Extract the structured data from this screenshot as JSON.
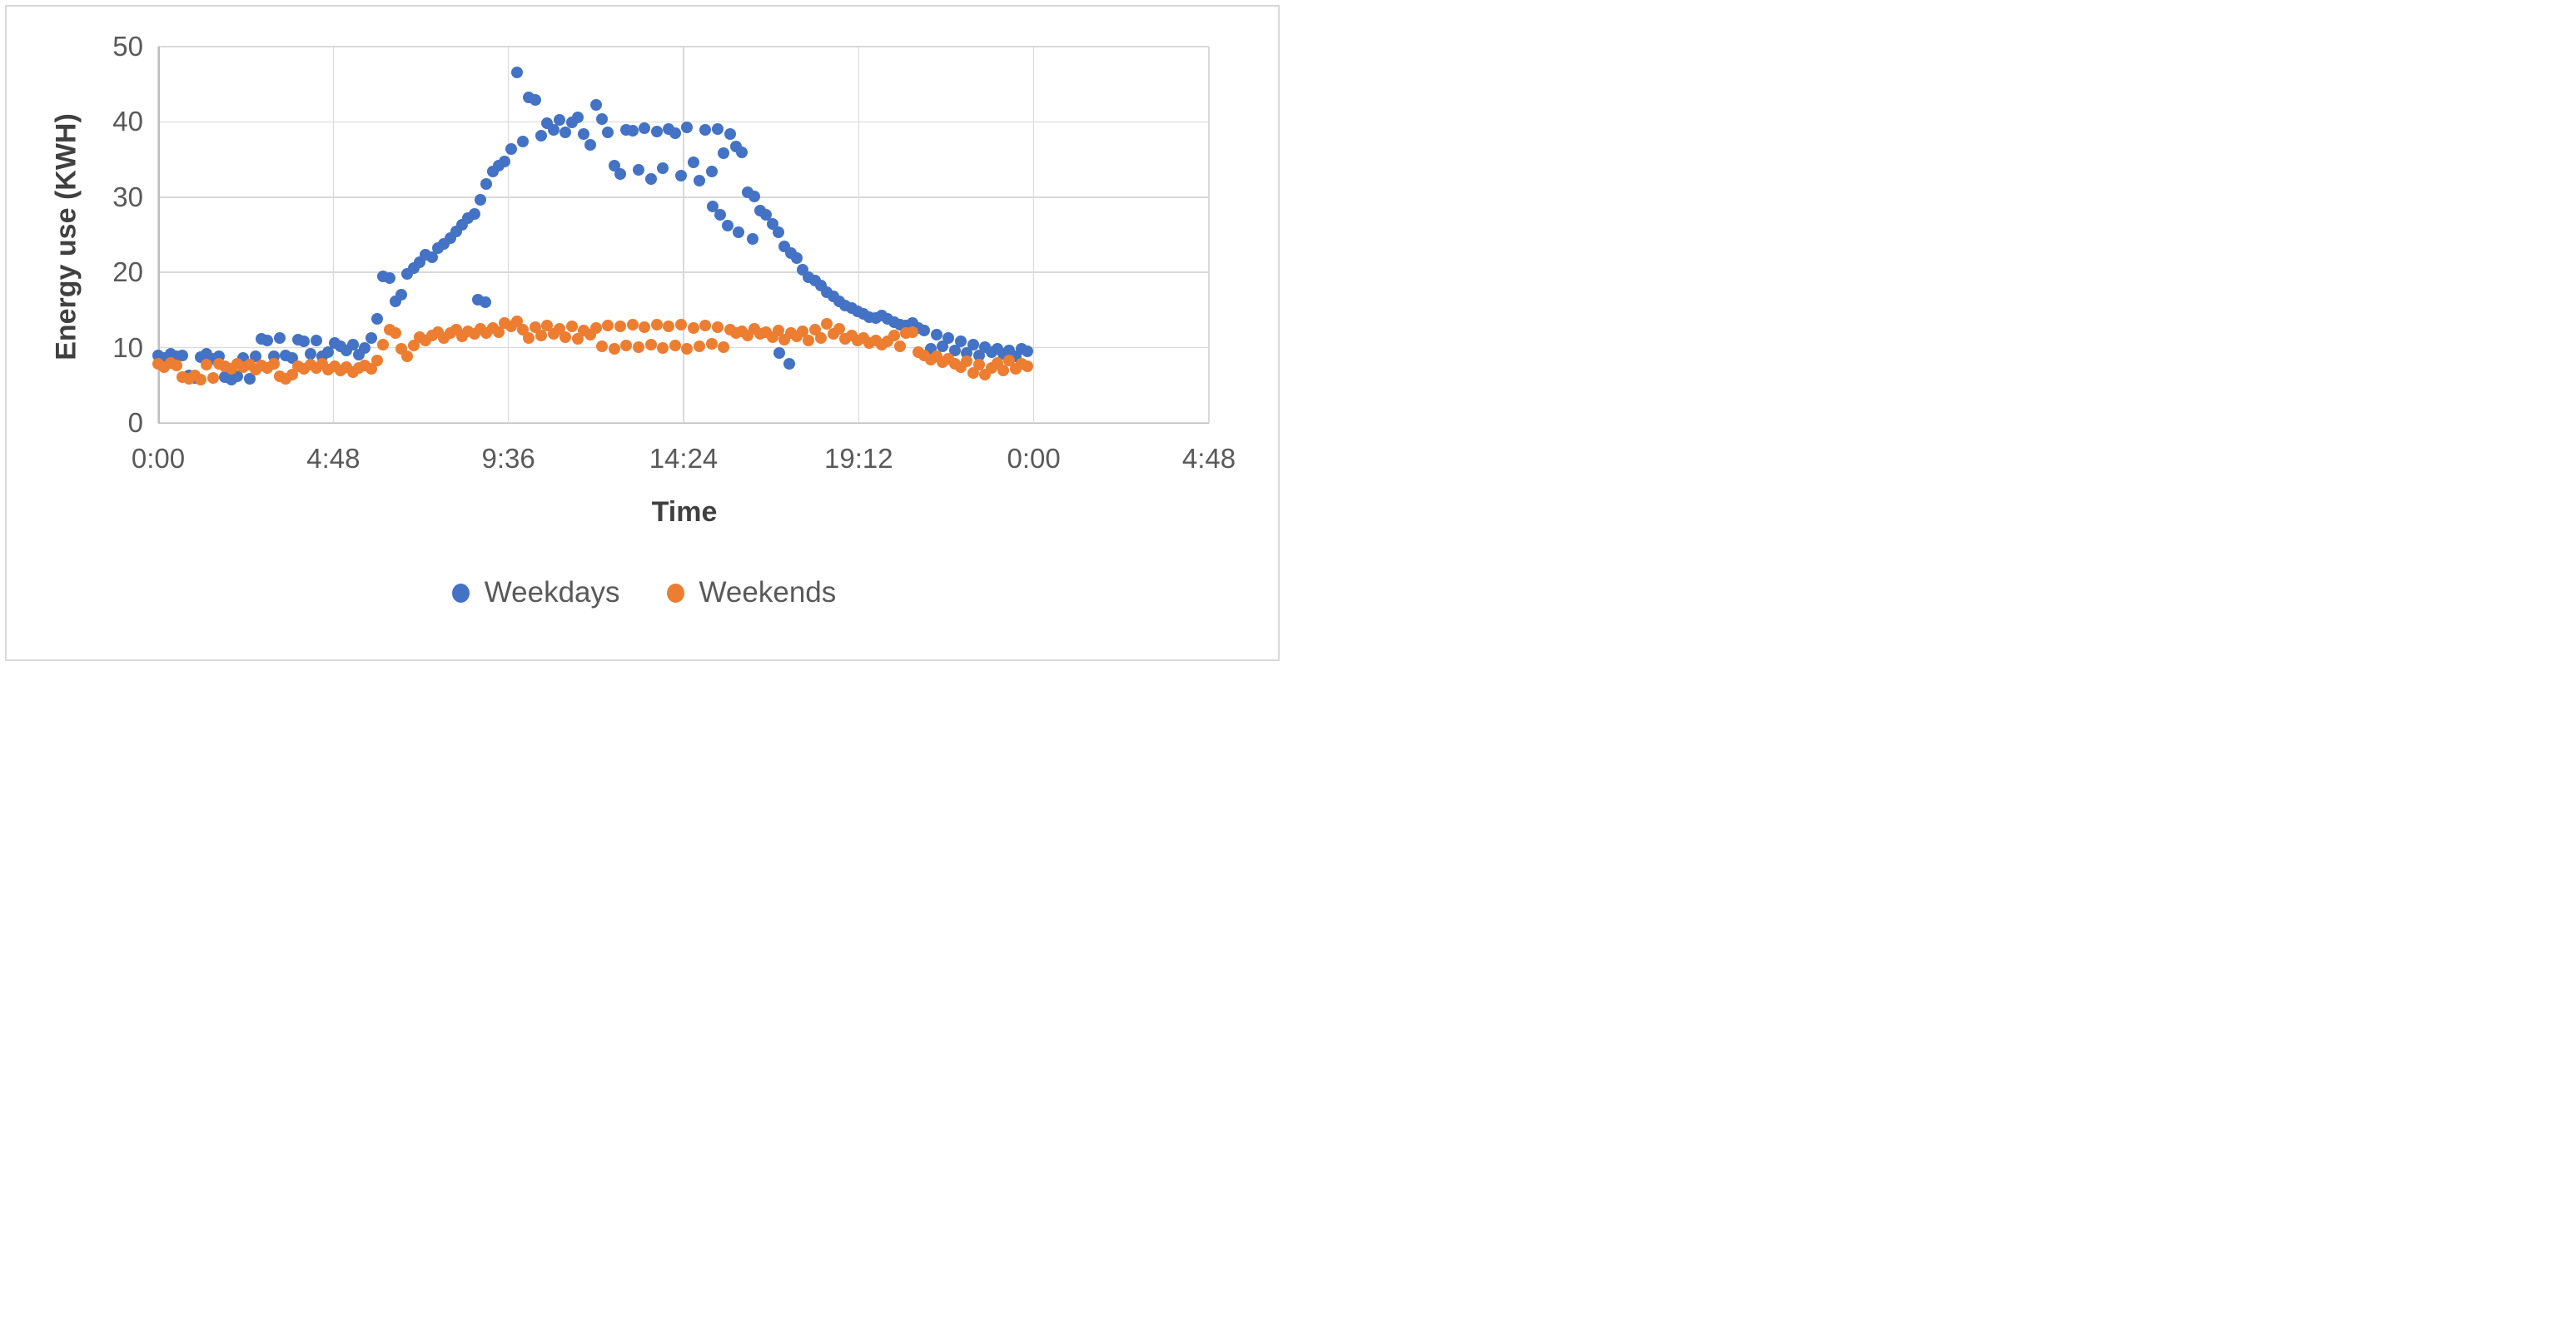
{
  "chart_data": {
    "type": "scatter",
    "title": "",
    "xlabel": "Time",
    "ylabel": "Energy use (KWH)",
    "grid": true,
    "legend_position": "bottom",
    "x_axis": {
      "tick_labels": [
        "0:00",
        "4:48",
        "9:36",
        "14:24",
        "19:12",
        "0:00",
        "4:48"
      ],
      "tick_hours": [
        0,
        4.8,
        9.6,
        14.4,
        19.2,
        24,
        28.8
      ],
      "range_hours": [
        0,
        28.8
      ]
    },
    "y_axis": {
      "tick_labels": [
        "0",
        "10",
        "20",
        "30",
        "40",
        "50"
      ],
      "ticks": [
        0,
        10,
        20,
        30,
        40,
        50
      ],
      "range": [
        0,
        50
      ]
    },
    "series": [
      {
        "name": "Weekdays",
        "color": "#4472C4",
        "start_min": 0,
        "interval_min": 10,
        "values": [
          9.0,
          8.6,
          9.2,
          8.8,
          9.0,
          6.3,
          6.0,
          8.7,
          9.2,
          8.5,
          8.9,
          6.1,
          5.8,
          6.2,
          8.6,
          5.9,
          8.8,
          11.2,
          11.0,
          8.9,
          11.3,
          9.0,
          8.6,
          11.1,
          10.8,
          9.2,
          10.9,
          8.8,
          9.4,
          10.6,
          10.2,
          9.6,
          10.4,
          9.1,
          10.0,
          11.3,
          13.8,
          19.5,
          19.2,
          16.2,
          17.0,
          19.8,
          20.6,
          21.4,
          22.3,
          22.0,
          23.2,
          23.8,
          24.6,
          25.4,
          26.3,
          27.2,
          27.8,
          29.6,
          31.8,
          33.4,
          34.2,
          34.7,
          36.4,
          46.6,
          37.4,
          43.3,
          42.9,
          38.2,
          39.8,
          38.9,
          40.3,
          38.6,
          39.9,
          40.6,
          38.4,
          36.9,
          42.3,
          40.4,
          38.6,
          34.2,
          33.1,
          38.9,
          38.8,
          33.6,
          39.2,
          32.4,
          38.7,
          33.9,
          39.0,
          38.5,
          32.8,
          39.3,
          34.6,
          32.2,
          38.9,
          33.4,
          39.1,
          35.8,
          38.4,
          36.7,
          35.9,
          30.6,
          30.1,
          28.2,
          27.6,
          26.4,
          25.3,
          23.4,
          22.6,
          21.9,
          20.3,
          19.4,
          18.9,
          18.2,
          17.4,
          16.8,
          16.1,
          15.6,
          15.3,
          14.8,
          14.5,
          14.1,
          13.9,
          14.3,
          13.8,
          13.4,
          13.1,
          12.9,
          13.3,
          12.6,
          12.3,
          9.8,
          11.7,
          10.2,
          11.3,
          9.6,
          10.8,
          9.3,
          10.4,
          9.0,
          10.1,
          9.4,
          9.8,
          9.2,
          9.6,
          8.9,
          9.9,
          9.5
        ],
        "extra_points_min_value": [
          [
            526,
            16.4
          ],
          [
            538,
            16.0
          ],
          [
            912,
            28.8
          ],
          [
            924,
            27.6
          ],
          [
            936,
            26.2
          ],
          [
            954,
            25.3
          ],
          [
            978,
            24.5
          ],
          [
            1022,
            9.3
          ],
          [
            1038,
            7.9
          ]
        ]
      },
      {
        "name": "Weekends",
        "color": "#ED7D31",
        "start_min": 0,
        "interval_min": 10,
        "values": [
          7.8,
          7.4,
          8.0,
          7.6,
          6.1,
          5.9,
          6.3,
          5.8,
          7.7,
          6.0,
          7.9,
          7.5,
          7.2,
          7.8,
          7.4,
          7.7,
          7.1,
          7.6,
          7.3,
          7.8,
          6.2,
          5.9,
          6.4,
          7.5,
          7.2,
          7.7,
          7.3,
          7.8,
          7.1,
          7.5,
          7.0,
          7.4,
          6.8,
          7.3,
          7.6,
          7.2,
          8.3,
          10.4,
          12.4,
          12.0,
          9.8,
          8.8,
          10.3,
          11.4,
          10.9,
          11.6,
          12.1,
          11.3,
          11.9,
          12.4,
          11.5,
          12.2,
          11.8,
          12.5,
          11.9,
          12.6,
          12.1,
          13.3,
          12.8,
          13.5,
          12.4,
          11.3,
          12.7,
          11.6,
          12.9,
          11.8,
          12.5,
          11.4,
          12.8,
          11.2,
          12.3,
          11.7,
          12.6,
          10.2,
          12.9,
          9.9,
          12.8,
          10.3,
          13.0,
          10.1,
          12.7,
          10.4,
          13.1,
          10.0,
          12.8,
          10.3,
          13.0,
          9.8,
          12.6,
          10.2,
          12.9,
          10.5,
          12.7,
          10.1,
          12.4,
          11.9,
          12.2,
          11.6,
          12.5,
          11.8,
          12.1,
          11.4,
          12.3,
          11.1,
          11.9,
          11.5,
          12.2,
          11.0,
          12.4,
          11.3,
          13.2,
          11.8,
          12.5,
          11.2,
          11.6,
          10.9,
          11.3,
          10.6,
          11.0,
          10.4,
          10.8,
          11.6,
          10.2,
          11.9,
          12.1,
          9.4,
          9.0,
          8.4,
          8.8,
          8.1,
          8.5,
          7.8,
          7.4,
          8.2,
          6.6,
          7.7,
          6.4,
          7.3,
          8.0,
          7.0,
          8.3,
          7.2,
          7.9,
          7.5
        ],
        "extra_points_min_value": []
      }
    ]
  },
  "colors": {
    "gridline": "#d9d9d9",
    "axis_line": "#bfbfbf",
    "tick_text": "#595959",
    "title_text": "#404040"
  }
}
